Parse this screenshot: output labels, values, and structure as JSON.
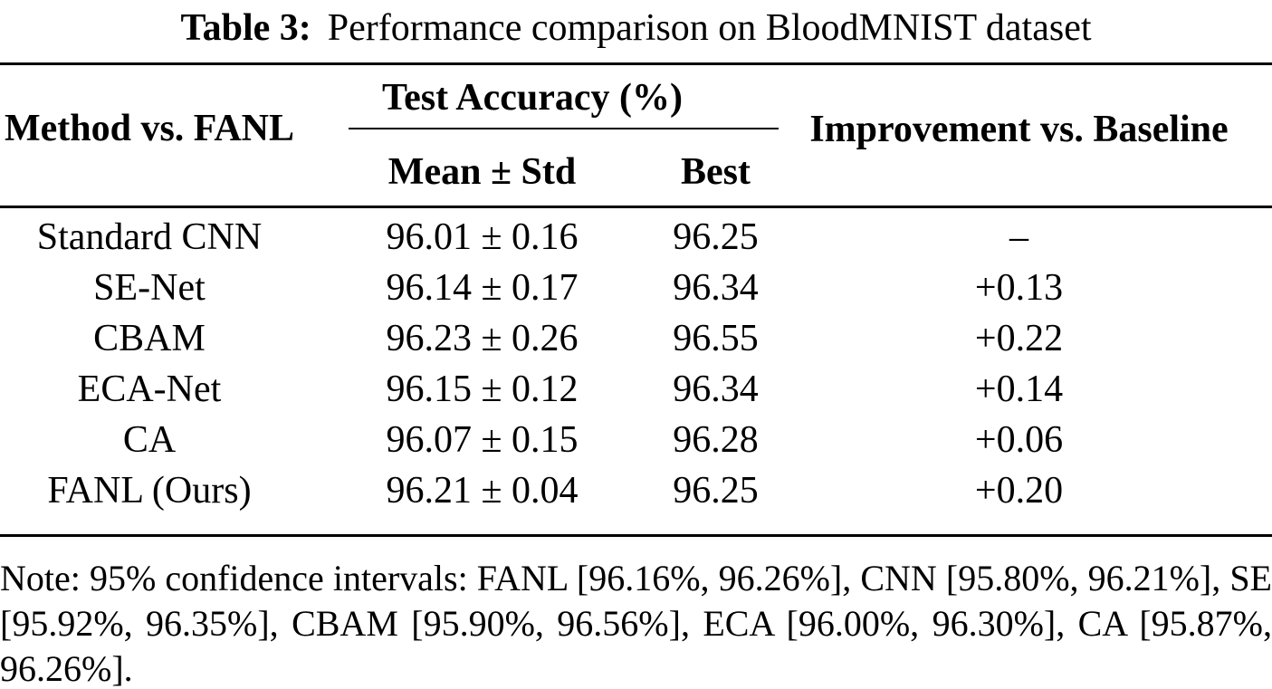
{
  "caption": {
    "label": "Table 3:",
    "text": "Performance comparison on BloodMNIST dataset"
  },
  "table": {
    "col_group_header": "Test Accuracy (%)",
    "headers": {
      "method": "Method vs. FANL",
      "mean_std": "Mean ± Std",
      "best": "Best",
      "improvement": "Improvement vs. Baseline"
    },
    "rows": [
      {
        "method": "Standard CNN",
        "mean_std": "96.01 ± 0.16",
        "best": "96.25",
        "improvement": "–"
      },
      {
        "method": "SE-Net",
        "mean_std": "96.14 ± 0.17",
        "best": "96.34",
        "improvement": "+0.13"
      },
      {
        "method": "CBAM",
        "mean_std": "96.23 ± 0.26",
        "best": "96.55",
        "improvement": "+0.22"
      },
      {
        "method": "ECA-Net",
        "mean_std": "96.15 ± 0.12",
        "best": "96.34",
        "improvement": "+0.14"
      },
      {
        "method": "CA",
        "mean_std": "96.07 ± 0.15",
        "best": "96.28",
        "improvement": "+0.06"
      },
      {
        "method": "FANL (Ours)",
        "mean_std": "96.21 ± 0.04",
        "best": "96.25",
        "improvement": "+0.20"
      }
    ]
  },
  "note": {
    "text": "Note: 95% confidence intervals: FANL [96.16%, 96.26%], CNN [95.80%, 96.21%], SE [95.92%, 96.35%], CBAM [95.90%, 96.56%], ECA [96.00%, 96.30%], CA [95.87%, 96.26%]."
  },
  "colors": {
    "background": "#ffffff",
    "text": "#000000",
    "rule": "#000000"
  }
}
